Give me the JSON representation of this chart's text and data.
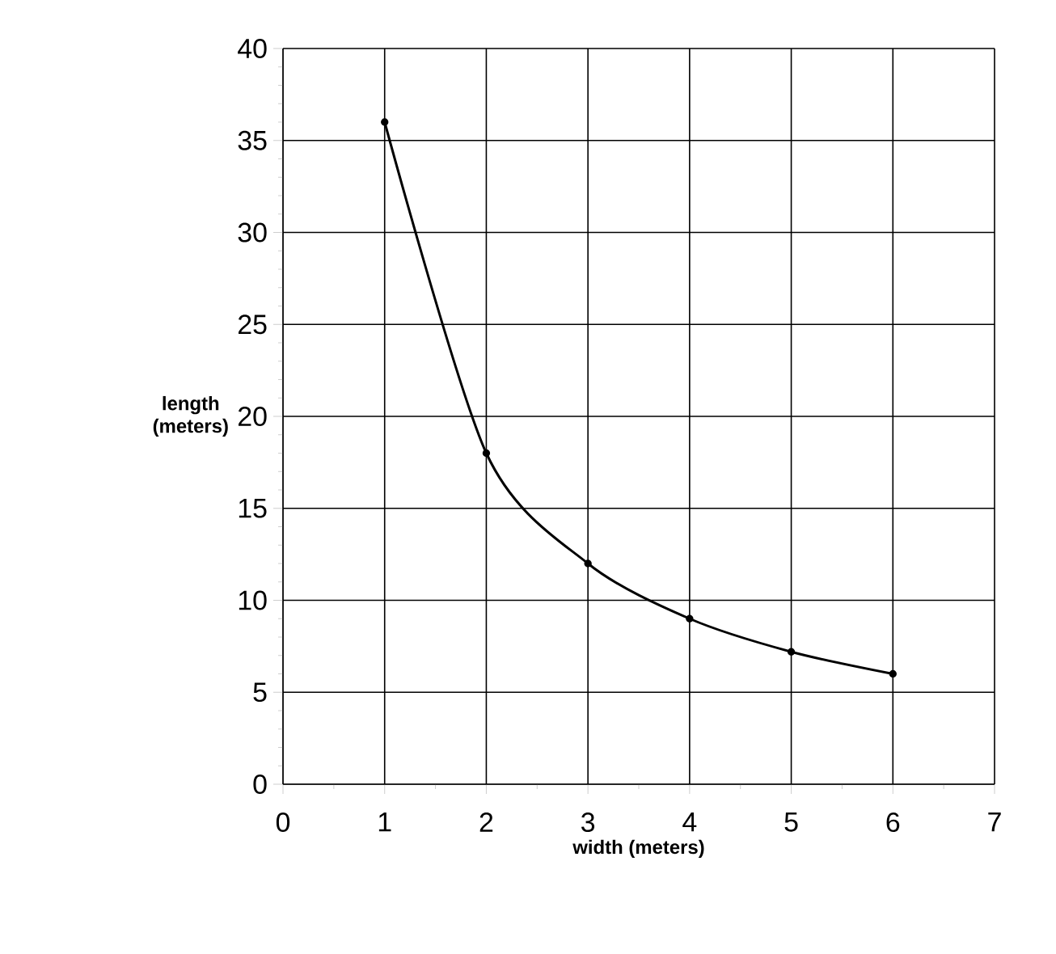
{
  "chart_data": {
    "type": "line",
    "xlabel": "width (meters)",
    "ylabel": "length\n(meters)",
    "x": [
      1,
      2,
      3,
      4,
      5,
      6
    ],
    "series": [
      {
        "color": "#000000",
        "values": [
          36,
          18,
          12,
          9,
          7.2,
          6
        ]
      }
    ],
    "xlim": [
      0,
      7
    ],
    "xticks": [
      0,
      1,
      2,
      3,
      4,
      5,
      6,
      7
    ],
    "ylim": [
      0,
      40
    ],
    "yticks": [
      0,
      5,
      10,
      15,
      20,
      25,
      30,
      35,
      40
    ],
    "grid": true,
    "marker": "circle",
    "line_style": "solid"
  }
}
